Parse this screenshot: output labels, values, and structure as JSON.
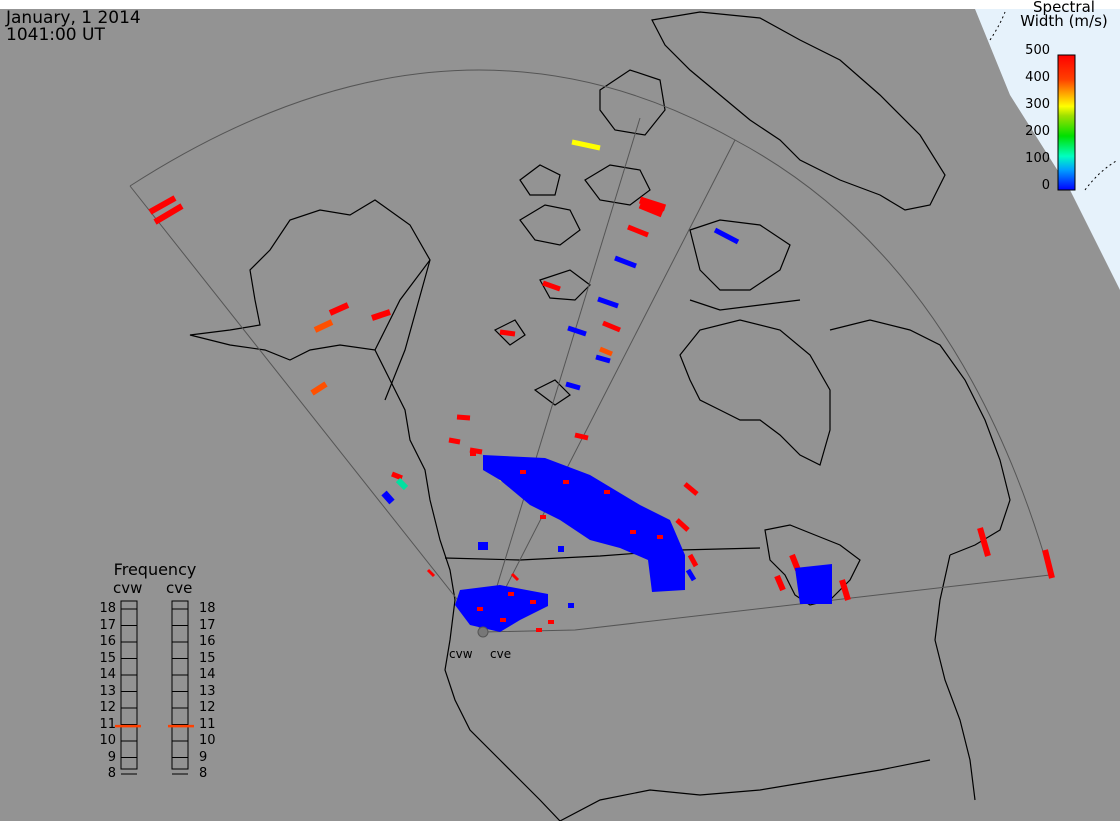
{
  "timestamp": {
    "date": "January, 1 2014",
    "time": "1041:00 UT"
  },
  "colorbar": {
    "title_line1": "Spectral",
    "title_line2": "Width (m/s)",
    "ticks": [
      "500",
      "400",
      "300",
      "200",
      "100",
      "0"
    ],
    "range": [
      0,
      500
    ],
    "colors": [
      "#0000ff",
      "#00a0ff",
      "#00ffc0",
      "#00e000",
      "#a0e000",
      "#ffff00",
      "#ffa000",
      "#ff4000",
      "#ff0000"
    ]
  },
  "frequency_panel": {
    "title": "Frequency",
    "radars": [
      {
        "code": "cvw",
        "value_mhz": 10.9
      },
      {
        "code": "cve",
        "value_mhz": 10.9
      }
    ],
    "scale": [
      "18",
      "17",
      "16",
      "15",
      "14",
      "13",
      "12",
      "11",
      "10",
      "9",
      "8"
    ],
    "marker_color": "#ff4000"
  },
  "radar_sites": [
    "cvw",
    "cve"
  ],
  "map_colors": {
    "land_background": "#939393",
    "sky": "#ffffff",
    "polar_region": "#e6f2fb",
    "coastline": "#000000",
    "fov_outline": "#555555",
    "high_width": "#ff0000",
    "low_width": "#0000ff"
  }
}
